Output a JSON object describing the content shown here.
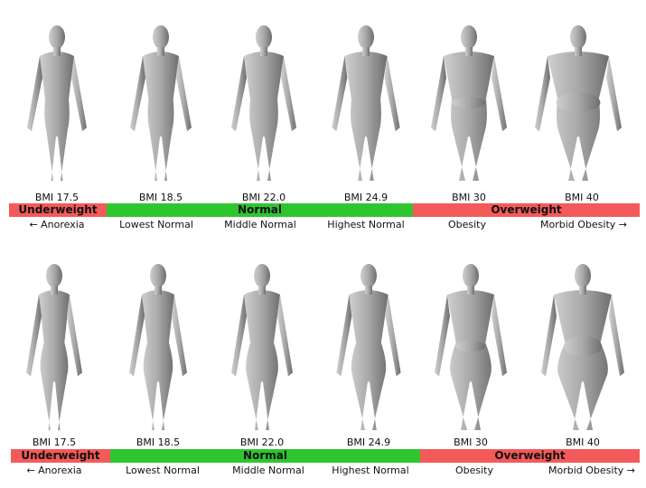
{
  "colors": {
    "underweight": "#f35a5a",
    "normal": "#2fc52f",
    "overweight": "#f35a5a",
    "figure": "#9a9a9a"
  },
  "rows": [
    {
      "figure": "male",
      "bmi": [
        "BMI 17.5",
        "BMI 18.5",
        "BMI 22.0",
        "BMI 24.9",
        "BMI 30",
        "BMI 40"
      ],
      "categories": [
        "Underweight",
        "Normal",
        "Overweight"
      ],
      "descriptions": [
        "← Anorexia",
        "Lowest Normal",
        "Middle Normal",
        "Highest Normal",
        "Obesity",
        "Morbid Obesity →"
      ]
    },
    {
      "figure": "female",
      "bmi": [
        "BMI 17.5",
        "BMI 18.5",
        "BMI 22.0",
        "BMI 24.9",
        "BMI 30",
        "BMI 40"
      ],
      "categories": [
        "Underweight",
        "Normal",
        "Overweight"
      ],
      "descriptions": [
        "← Anorexia",
        "Lowest Normal",
        "Middle Normal",
        "Highest Normal",
        "Obesity",
        "Morbid Obesity →"
      ]
    }
  ]
}
